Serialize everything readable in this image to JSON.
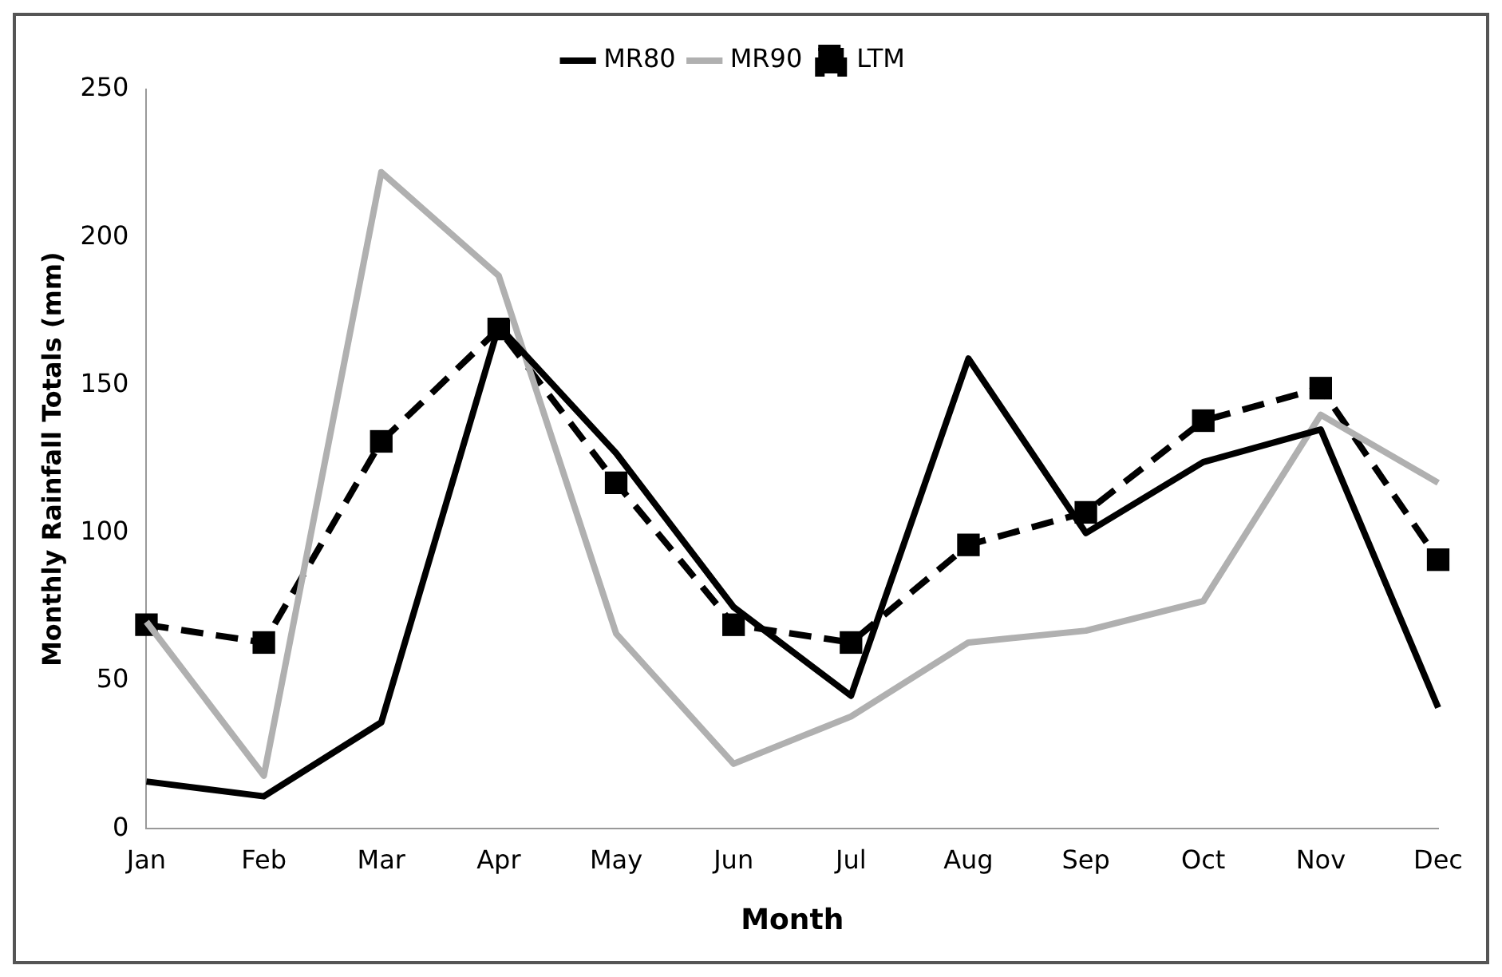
{
  "chart_data": {
    "type": "line",
    "xlabel": "Month",
    "ylabel": "Monthly Rainfall Totals (mm)",
    "categories": [
      "Jan",
      "Feb",
      "Mar",
      "Apr",
      "May",
      "Jun",
      "Jul",
      "Aug",
      "Sep",
      "Oct",
      "Nov",
      "Dec"
    ],
    "series": [
      {
        "name": "MR80",
        "color": "#000000",
        "marker": "none",
        "line_style": "solid",
        "values": [
          16,
          11,
          36,
          170,
          127,
          75,
          45,
          159,
          100,
          124,
          135,
          41
        ]
      },
      {
        "name": "MR90",
        "color": "#b0b0b0",
        "marker": "none",
        "line_style": "solid",
        "values": [
          70,
          18,
          222,
          187,
          66,
          22,
          38,
          63,
          67,
          77,
          140,
          117
        ]
      },
      {
        "name": "LTM",
        "color": "#000000",
        "marker": "square",
        "line_style": "dashed",
        "values": [
          69,
          63,
          131,
          169,
          117,
          69,
          63,
          96,
          107,
          138,
          149,
          91
        ]
      }
    ],
    "ylim": [
      0,
      250
    ],
    "yticks": [
      0,
      50,
      100,
      150,
      200,
      250
    ],
    "grid": false,
    "legend": "top"
  }
}
